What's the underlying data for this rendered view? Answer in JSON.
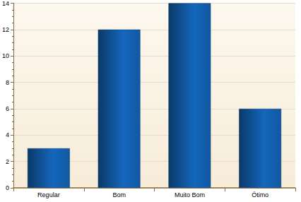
{
  "chart_data": {
    "type": "bar",
    "categories": [
      "Regular",
      "Bom",
      "Muito Bom",
      "Ótimo"
    ],
    "values": [
      3,
      12,
      14,
      6
    ],
    "color": "#1467bd",
    "ylim": [
      0,
      14
    ],
    "yticks": [
      0,
      2,
      4,
      6,
      8,
      10,
      12,
      14
    ],
    "grid": true
  }
}
